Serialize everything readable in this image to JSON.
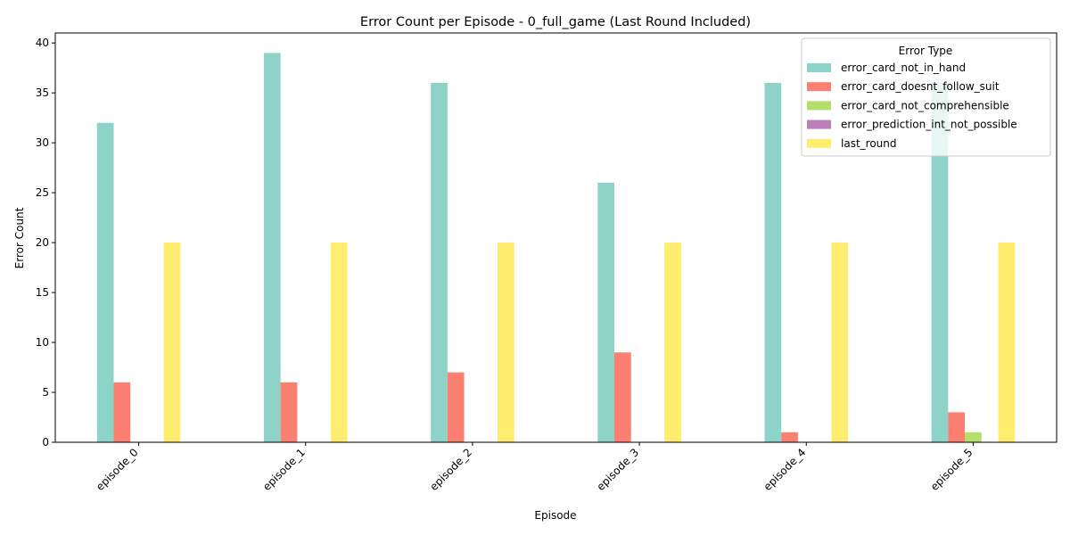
{
  "chart_data": {
    "type": "bar",
    "title": "Error Count per Episode - 0_full_game (Last Round Included)",
    "xlabel": "Episode",
    "ylabel": "Error Count",
    "ylim": [
      0,
      41
    ],
    "yticks": [
      0,
      5,
      10,
      15,
      20,
      25,
      30,
      35,
      40
    ],
    "categories": [
      "episode_0",
      "episode_1",
      "episode_2",
      "episode_3",
      "episode_4",
      "episode_5"
    ],
    "legend_title": "Error Type",
    "legend_position": "top-right",
    "grid": false,
    "series": [
      {
        "name": "error_card_not_in_hand",
        "color": "#8dd3c7",
        "values": [
          32,
          39,
          36,
          26,
          36,
          36
        ]
      },
      {
        "name": "error_card_doesnt_follow_suit",
        "color": "#fb8072",
        "values": [
          6,
          6,
          7,
          9,
          1,
          3
        ]
      },
      {
        "name": "error_card_not_comprehensible",
        "color": "#b3de69",
        "values": [
          0,
          0,
          0,
          0,
          0,
          1
        ]
      },
      {
        "name": "error_prediction_int_not_possible",
        "color": "#bc80bd",
        "values": [
          0,
          0,
          0,
          0,
          0,
          0
        ]
      },
      {
        "name": "last_round",
        "color": "#ffed6f",
        "values": [
          20,
          20,
          20,
          20,
          20,
          20
        ]
      }
    ]
  }
}
